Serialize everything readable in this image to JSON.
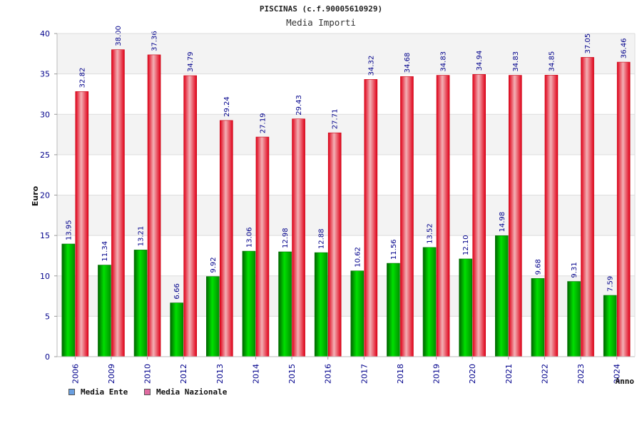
{
  "chart_data": {
    "type": "bar",
    "title": "PISCINAS (c.f.90005610929)",
    "subtitle": "Media Importi",
    "ylabel": "Euro",
    "xlabel": "Anno",
    "ylim": [
      0,
      40
    ],
    "yticks": [
      "0",
      "5",
      "10",
      "15",
      "20",
      "25",
      "30",
      "35",
      "40"
    ],
    "grid": true,
    "legend_position": "bottom-left",
    "categories": [
      "2006",
      "2009",
      "2010",
      "2012",
      "2013",
      "2014",
      "2015",
      "2016",
      "2017",
      "2018",
      "2019",
      "2020",
      "2021",
      "2022",
      "2023",
      "2024"
    ],
    "series": [
      {
        "name": "Media Ente",
        "color": "#00c000",
        "legend_color": "#6a9fe0",
        "values": [
          13.95,
          11.34,
          13.21,
          6.66,
          9.92,
          13.06,
          12.98,
          12.88,
          10.62,
          11.56,
          13.52,
          12.1,
          14.98,
          9.68,
          9.31,
          7.59
        ],
        "labels": [
          "13.95",
          "11.34",
          "13.21",
          "6.66",
          "9.92",
          "13.06",
          "12.98",
          "12.88",
          "10.62",
          "11.56",
          "13.52",
          "12.10",
          "14.98",
          "9.68",
          "9.31",
          "7.59"
        ]
      },
      {
        "name": "Media Nazionale",
        "color": "#e8001c",
        "legend_color": "#e06aa0",
        "values": [
          32.82,
          38.0,
          37.36,
          34.79,
          29.24,
          27.19,
          29.43,
          27.71,
          34.32,
          34.68,
          34.83,
          34.94,
          34.83,
          34.85,
          37.05,
          36.46
        ],
        "labels": [
          "32.82",
          "38.00",
          "37.36",
          "34.79",
          "29.24",
          "27.19",
          "29.43",
          "27.71",
          "34.32",
          "34.68",
          "34.83",
          "34.94",
          "34.83",
          "34.85",
          "37.05",
          "36.46"
        ]
      }
    ]
  }
}
